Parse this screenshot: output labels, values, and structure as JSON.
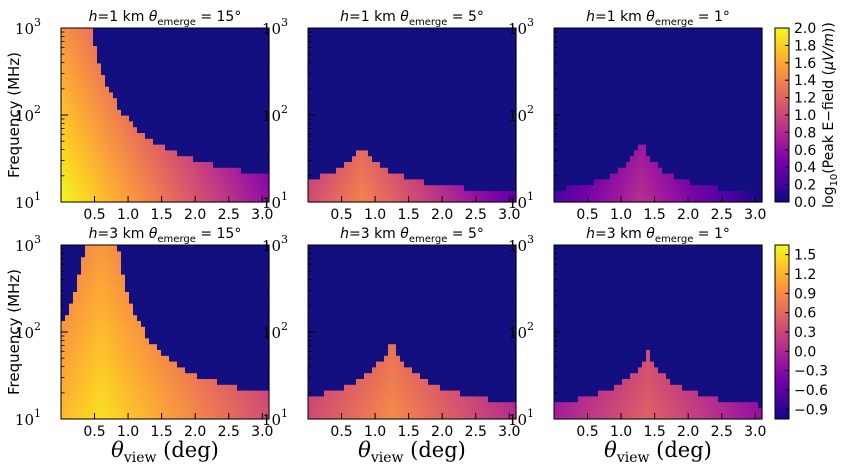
{
  "figure": {
    "colormap": "plasma",
    "colormap_stops": [
      "#0d0887",
      "#46039f",
      "#7201a8",
      "#9c179e",
      "#bd3786",
      "#d8576b",
      "#ed7953",
      "#fb9f3a",
      "#fdca26",
      "#f0f921"
    ],
    "masked_color": "#140f80",
    "ylabel": "Frequency (MHz)",
    "xlabel_symbol": "θ",
    "xlabel_sub": "view",
    "xlabel_unit": " (deg)",
    "title_h_symbol": "h",
    "title_theta_symbol": "θ",
    "title_sub": "emerge"
  },
  "chart_data": [
    {
      "type": "heatmap",
      "title_h": "=1 km ",
      "title_angle": " = 15°",
      "h_km": 1,
      "theta_emerge_deg": 15,
      "xlim": [
        0,
        3.1
      ],
      "ylim": [
        10,
        1000
      ],
      "yscale": "log",
      "xticks": [
        "0.5",
        "1.0",
        "1.5",
        "2.0",
        "2.5",
        "3.0"
      ],
      "yticks_exp": [
        "1",
        "2",
        "3"
      ],
      "ridge_deg": 0,
      "peak_value": 2.0,
      "cutoff": [
        1.0,
        0.05
      ],
      "colorbar": 0
    },
    {
      "type": "heatmap",
      "title_h": "=1 km ",
      "title_angle": " = 5°",
      "h_km": 1,
      "theta_emerge_deg": 5,
      "xlim": [
        0,
        3.1
      ],
      "ylim": [
        10,
        1000
      ],
      "yscale": "log",
      "xticks": [
        "0.5",
        "1.0",
        "1.5",
        "2.0",
        "2.5",
        "3.0"
      ],
      "yticks_exp": [
        "1",
        "2",
        "3"
      ],
      "ridge_deg": 0.8,
      "peak_value": 1.4,
      "cutoff": [
        0.35,
        0.55
      ],
      "colorbar": 0
    },
    {
      "type": "heatmap",
      "title_h": "=1 km ",
      "title_angle": " = 1°",
      "h_km": 1,
      "theta_emerge_deg": 1,
      "xlim": [
        0,
        3.1
      ],
      "ylim": [
        10,
        1000
      ],
      "yscale": "log",
      "xticks": [
        "0.5",
        "1.0",
        "1.5",
        "2.0",
        "2.5",
        "3.0"
      ],
      "yticks_exp": [
        "1",
        "2",
        "3"
      ],
      "ridge_deg": 1.3,
      "peak_value": 0.85,
      "cutoff": [
        0.25,
        0.35
      ],
      "colorbar": 0
    },
    {
      "type": "heatmap",
      "title_h": "=3 km ",
      "title_angle": " = 15°",
      "h_km": 3,
      "theta_emerge_deg": 15,
      "xlim": [
        0,
        3.1
      ],
      "ylim": [
        10,
        1000
      ],
      "yscale": "log",
      "xticks": [
        "0.5",
        "1.0",
        "1.5",
        "2.0",
        "2.5",
        "3.0"
      ],
      "yticks_exp": [
        "1",
        "2",
        "3"
      ],
      "ridge_deg": 0.6,
      "peak_value": 1.5,
      "cutoff": [
        0.8,
        0.15
      ],
      "colorbar": 1
    },
    {
      "type": "heatmap",
      "title_h": "=3 km ",
      "title_angle": " = 5°",
      "h_km": 3,
      "theta_emerge_deg": 5,
      "xlim": [
        0,
        3.1
      ],
      "ylim": [
        10,
        1000
      ],
      "yscale": "log",
      "xticks": [
        "0.5",
        "1.0",
        "1.5",
        "2.0",
        "2.5",
        "3.0"
      ],
      "yticks_exp": [
        "1",
        "2",
        "3"
      ],
      "ridge_deg": 1.25,
      "peak_value": 0.9,
      "cutoff": [
        0.45,
        0.5
      ],
      "colorbar": 1
    },
    {
      "type": "heatmap",
      "title_h": "=3 km ",
      "title_angle": " = 1°",
      "h_km": 3,
      "theta_emerge_deg": 1,
      "xlim": [
        0,
        3.1
      ],
      "ylim": [
        10,
        1000
      ],
      "yscale": "log",
      "xticks": [
        "0.5",
        "1.0",
        "1.5",
        "2.0",
        "2.5",
        "3.0"
      ],
      "yticks_exp": [
        "1",
        "2",
        "3"
      ],
      "ridge_deg": 1.4,
      "peak_value": 0.55,
      "cutoff": [
        0.35,
        0.45
      ],
      "colorbar": 1
    }
  ],
  "colorbars": [
    {
      "label_prefix": "log",
      "label_sub": "10",
      "label_main": "(Peak E−field (",
      "label_unit": "μV/m",
      "label_close": "))",
      "vmin": 0.0,
      "vmax": 2.0,
      "ticks": [
        "0.0",
        "0.2",
        "0.4",
        "0.6",
        "0.8",
        "1.0",
        "1.2",
        "1.4",
        "1.6",
        "1.8",
        "2.0"
      ],
      "tick_values": [
        0.0,
        0.2,
        0.4,
        0.6,
        0.8,
        1.0,
        1.2,
        1.4,
        1.6,
        1.8,
        2.0
      ]
    },
    {
      "vmin": -1.05,
      "vmax": 1.65,
      "ticks": [
        "−0.9",
        "−0.6",
        "−0.3",
        "0.0",
        "0.3",
        "0.6",
        "0.9",
        "1.2",
        "1.5"
      ],
      "tick_values": [
        -0.9,
        -0.6,
        -0.3,
        0.0,
        0.3,
        0.6,
        0.9,
        1.2,
        1.5
      ]
    }
  ]
}
